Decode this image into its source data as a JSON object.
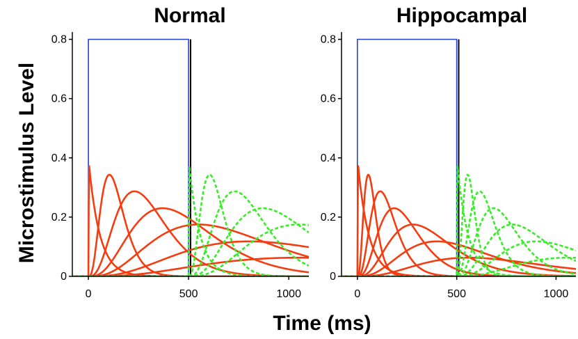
{
  "figure": {
    "ylabel": "Microstimulus Level",
    "xlabel": "Time (ms)"
  },
  "colors": {
    "stimulus": "#2140e0",
    "reward_marker": "#000000",
    "stimulus_microstimuli": "#f53c10",
    "reward_microstimuli": "#33ee22"
  },
  "chart_data": [
    {
      "type": "line",
      "title": "Normal",
      "xlabel": "Time (ms)",
      "ylabel": "Microstimulus Level",
      "xlim": [
        -80,
        1100
      ],
      "ylim": [
        0,
        0.82
      ],
      "xticks": [
        0,
        500,
        1000
      ],
      "yticks": [
        0,
        0.2,
        0.4,
        0.6,
        0.8
      ],
      "xtick_labels": [
        "0",
        "500",
        "1000"
      ],
      "ytick_labels": [
        "0",
        "0.2",
        "0.4",
        "0.6",
        "0.8"
      ],
      "grid": false,
      "stimulus_trace": {
        "x": [
          -80,
          0,
          0,
          500,
          500,
          1100
        ],
        "y": [
          0,
          0,
          0.8,
          0.8,
          0,
          0
        ]
      },
      "reward_marker_x": 510,
      "stimulus_microstimuli": [
        {
          "peak_x": 0,
          "peak_y": 0.4
        },
        {
          "peak_x": 105,
          "peak_y": 0.343
        },
        {
          "peak_x": 230,
          "peak_y": 0.287
        },
        {
          "peak_x": 370,
          "peak_y": 0.23
        },
        {
          "peak_x": 550,
          "peak_y": 0.175
        },
        {
          "peak_x": 800,
          "peak_y": 0.118
        },
        {
          "peak_x": 1050,
          "peak_y": 0.063
        }
      ],
      "reward_microstimuli": [
        {
          "peak_x": 500,
          "peak_y": 0.4
        },
        {
          "peak_x": 605,
          "peak_y": 0.343
        },
        {
          "peak_x": 730,
          "peak_y": 0.287
        },
        {
          "peak_x": 870,
          "peak_y": 0.23
        },
        {
          "peak_x": 1050,
          "peak_y": 0.175
        }
      ]
    },
    {
      "type": "line",
      "title": "Hippocampal",
      "xlabel": "Time (ms)",
      "ylabel": "Microstimulus Level",
      "xlim": [
        -80,
        1100
      ],
      "ylim": [
        0,
        0.82
      ],
      "xticks": [
        0,
        500,
        1000
      ],
      "yticks": [
        0,
        0.2,
        0.4,
        0.6,
        0.8
      ],
      "xtick_labels": [
        "0",
        "500",
        "1000"
      ],
      "ytick_labels": [
        "0",
        "0.2",
        "0.4",
        "0.6",
        "0.8"
      ],
      "grid": false,
      "stimulus_trace": {
        "x": [
          -80,
          0,
          0,
          500,
          500,
          1100
        ],
        "y": [
          0,
          0,
          0.8,
          0.8,
          0,
          0
        ]
      },
      "reward_marker_x": 510,
      "stimulus_microstimuli": [
        {
          "peak_x": 0,
          "peak_y": 0.4
        },
        {
          "peak_x": 55,
          "peak_y": 0.343
        },
        {
          "peak_x": 115,
          "peak_y": 0.287
        },
        {
          "peak_x": 185,
          "peak_y": 0.23
        },
        {
          "peak_x": 280,
          "peak_y": 0.175
        },
        {
          "peak_x": 400,
          "peak_y": 0.118
        },
        {
          "peak_x": 560,
          "peak_y": 0.063
        }
      ],
      "reward_microstimuli": [
        {
          "peak_x": 500,
          "peak_y": 0.4
        },
        {
          "peak_x": 555,
          "peak_y": 0.343
        },
        {
          "peak_x": 615,
          "peak_y": 0.287
        },
        {
          "peak_x": 685,
          "peak_y": 0.23
        },
        {
          "peak_x": 780,
          "peak_y": 0.175
        },
        {
          "peak_x": 900,
          "peak_y": 0.118
        },
        {
          "peak_x": 1060,
          "peak_y": 0.063
        }
      ]
    }
  ]
}
